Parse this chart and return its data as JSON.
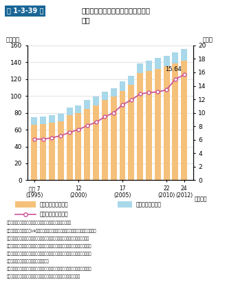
{
  "years": [
    1995,
    1996,
    1997,
    1998,
    1999,
    2000,
    2001,
    2002,
    2003,
    2004,
    2005,
    2006,
    2007,
    2008,
    2009,
    2010,
    2011,
    2012
  ],
  "junyo_hogo": [
    66,
    67,
    68,
    70,
    77,
    80,
    85,
    89,
    95,
    99,
    106,
    113,
    127,
    130,
    132,
    135,
    139,
    142
  ],
  "yo_hogo": [
    9,
    9,
    9,
    9,
    9,
    9,
    10,
    10,
    10,
    10,
    11,
    11,
    12,
    12,
    13,
    13,
    13,
    14
  ],
  "rate": [
    6.1,
    6.1,
    6.3,
    6.6,
    7.1,
    7.5,
    8.1,
    8.6,
    9.4,
    10.0,
    11.2,
    11.9,
    12.8,
    13.0,
    13.1,
    13.4,
    15.0,
    15.64
  ],
  "bar_color_junyo": "#F5C07A",
  "bar_color_yohogo": "#A8D8EA",
  "line_color": "#CC5599",
  "line_marker_face": "#FFFFFF",
  "title_box_color": "#1a6696",
  "title_box_text": "第 1-3-39 図",
  "title_text": "小学生・中学生に対する就学援助の\n状況",
  "ylabel_left": "（万人）",
  "ylabel_right": "（％）",
  "xlabel_end": "（年度）",
  "ylim_left": [
    0,
    160
  ],
  "ylim_right": [
    0,
    20
  ],
  "yticks_left": [
    0,
    20,
    40,
    60,
    80,
    100,
    120,
    140,
    160
  ],
  "yticks_right": [
    0,
    2,
    4,
    6,
    8,
    10,
    12,
    14,
    16,
    18,
    20
  ],
  "x_tick_years": [
    1995,
    2000,
    2005,
    2010,
    2012
  ],
  "x_tick_labels": [
    "平成 7\n(1995)",
    "12\n(2000)",
    "17\n(2005)",
    "22\n(2010)",
    "24\n(2012)"
  ],
  "annotation_text": "15.64",
  "legend_junyo": "準要保護児童生徒数",
  "legend_yohogo": "要保護児童生徒数",
  "legend_rate": "就学援助率（右軸）",
  "note1": "（出典）文部科学省「要保護及び準要保護児童生徒数について」",
  "note2": "（注）１．学校教育法第19条では，「経済的理由によって就学困難と認められる学齢児",
  "note3": "　　　童又は学齢生徒の保護者に対しては，市町村は，必要な援助を与えなければ",
  "note4": "　　　ならない。」とされており，生活保護法第６条第２項に規定する要保護者とそ",
  "note5": "　　　れに準ずる程度に困竮していると市町村教育委員会が認めた者（準要保護者）",
  "note6": "　　　に対し，就学援助が行われている。",
  "note7": "　　２．ここでいう就学援助率とは，公立小中学校児童生徒の総数に占める就学援助",
  "note8": "　　　受給者（要保護児童生徒数と準要保護児童生徒数の合計）の割合。"
}
